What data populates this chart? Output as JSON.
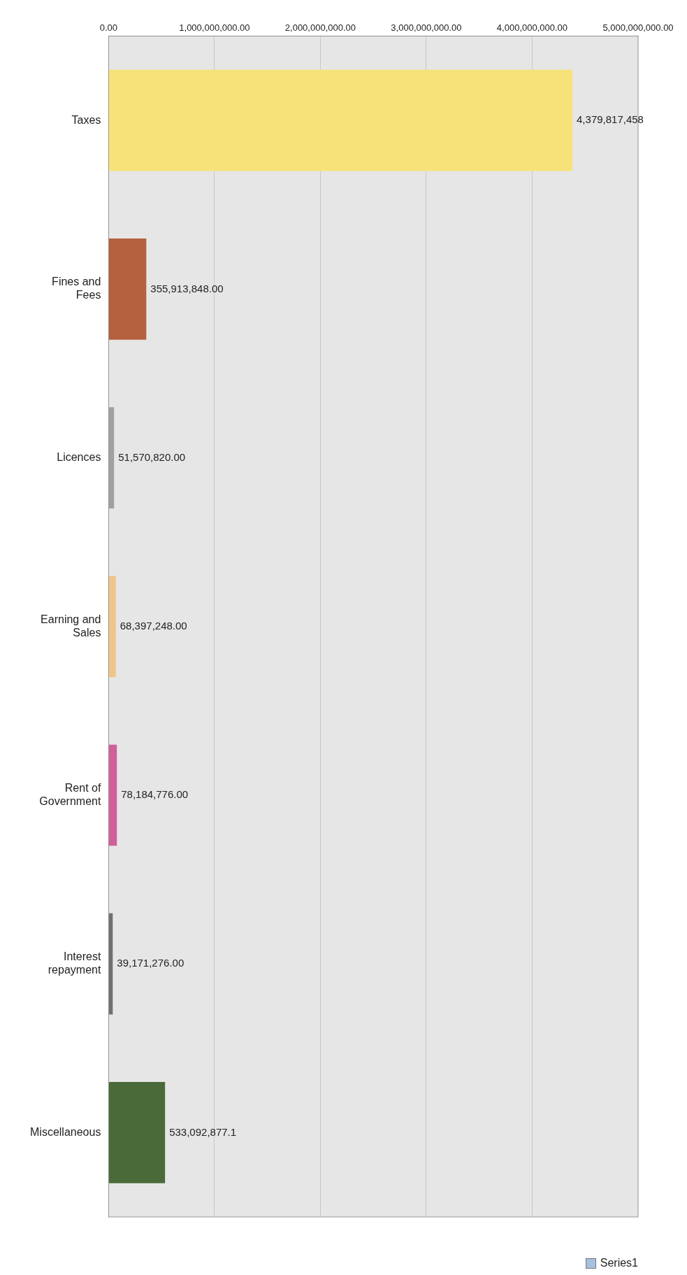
{
  "chart_data": {
    "type": "bar",
    "orientation": "horizontal",
    "categories": [
      "Taxes",
      "Fines and Fees",
      "Licences",
      "Earning and Sales",
      "Rent of Government",
      "Interest repayment",
      "Miscellaneous"
    ],
    "series": [
      {
        "name": "Series1",
        "color": "#a8c0e0",
        "colors": [
          "#f7e27a",
          "#b5603e",
          "#a0a0a0",
          "#f0c48a",
          "#d0609a",
          "#707070",
          "#4a6a3a"
        ],
        "values": [
          4379817458,
          355913848,
          51570820,
          68397248,
          78184776,
          39171276,
          533092877.1
        ],
        "value_labels": [
          "4,379,817,458",
          "355,913,848.00",
          "51,570,820.00",
          "68,397,248.00",
          "78,184,776.00",
          "39,171,276.00",
          "533,092,877.1"
        ]
      }
    ],
    "xlim": [
      0,
      5000000000
    ],
    "xticks": [
      {
        "value": 0,
        "label": "0.00"
      },
      {
        "value": 1000000000,
        "label": "1,000,000,000.00"
      },
      {
        "value": 2000000000,
        "label": "2,000,000,000.00"
      },
      {
        "value": 3000000000,
        "label": "3,000,000,000.00"
      },
      {
        "value": 4000000000,
        "label": "4,000,000,000.00"
      },
      {
        "value": 5000000000,
        "label": "5,000,000,000.00"
      }
    ],
    "grid": "x",
    "legend": "bottom"
  }
}
